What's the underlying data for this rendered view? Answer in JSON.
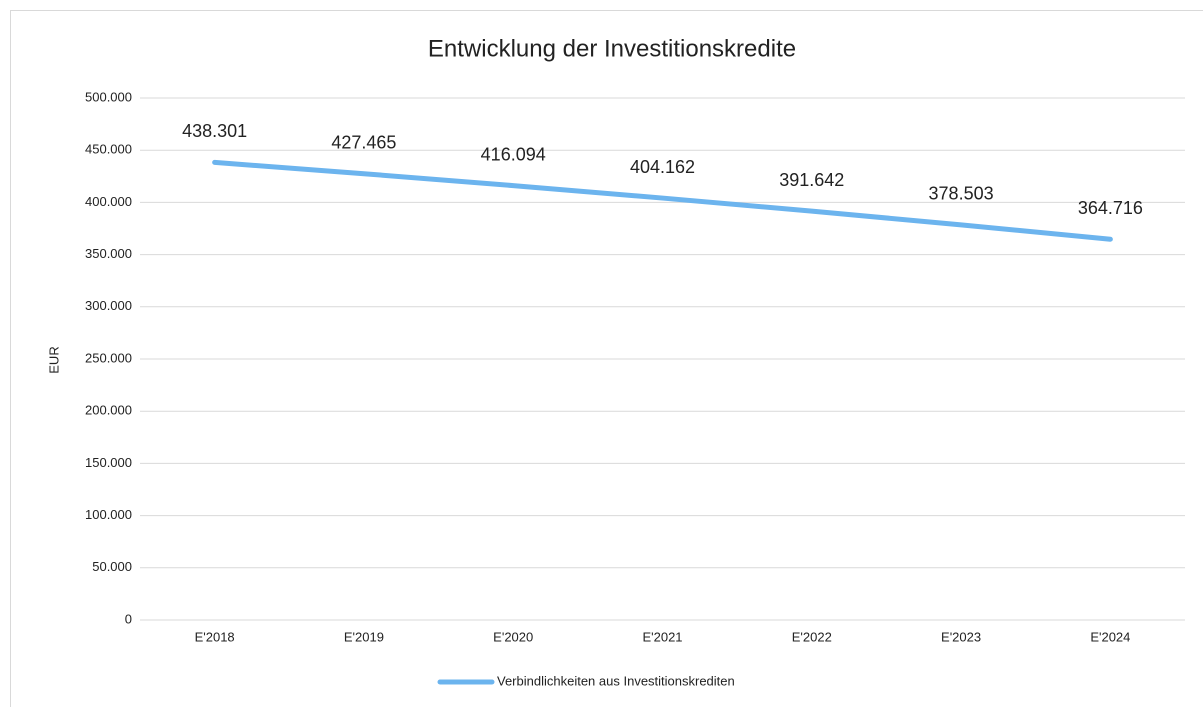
{
  "chart_data": {
    "type": "line",
    "title": "Entwicklung der Investitionskredite",
    "y_label": "EUR",
    "categories": [
      "E'2018",
      "E'2019",
      "E'2020",
      "E'2021",
      "E'2022",
      "E'2023",
      "E'2024"
    ],
    "series": [
      {
        "name": "Verbindlichkeiten aus Investitionskrediten",
        "color": "#6cb4ee",
        "values": [
          438301,
          427465,
          416094,
          404162,
          391642,
          378503,
          364716
        ],
        "value_labels": [
          "438.301",
          "427.465",
          "416.094",
          "404.162",
          "391.642",
          "378.503",
          "364.716"
        ]
      }
    ],
    "ylim": [
      0,
      500000
    ],
    "yticks": [
      0,
      {
        "value": 50000,
        "label": "50.000"
      },
      {
        "value": 100000,
        "label": "100.000"
      },
      {
        "value": 150000,
        "label": "150.000"
      },
      {
        "value": 200000,
        "label": "200.000"
      },
      {
        "value": 250000,
        "label": "250.000"
      },
      {
        "value": 300000,
        "label": "300.000"
      },
      {
        "value": 350000,
        "label": "350.000"
      },
      {
        "value": 400000,
        "label": "400.000"
      },
      {
        "value": 450000,
        "label": "450.000"
      },
      {
        "value": 500000,
        "label": "500.000"
      }
    ],
    "grid": true,
    "legend": "bottom"
  }
}
